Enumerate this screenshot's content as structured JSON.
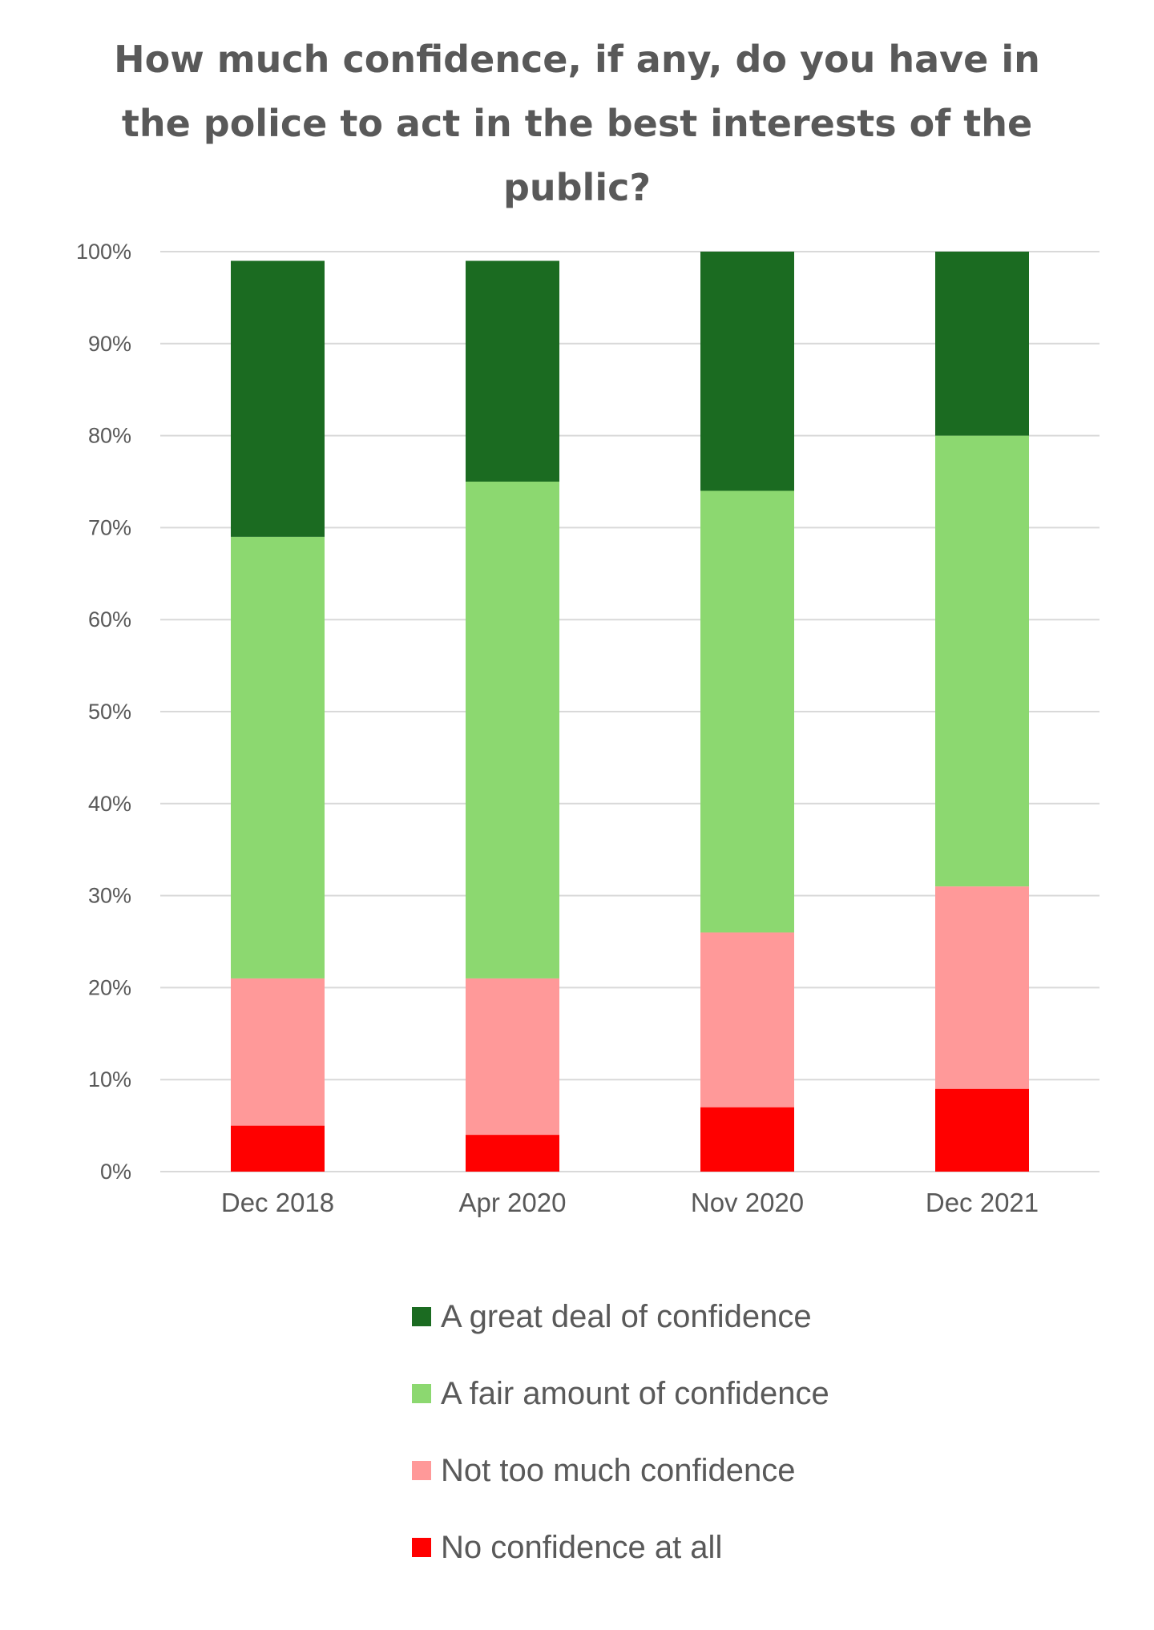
{
  "chart_data": {
    "type": "bar",
    "stacked": true,
    "title": "How much confidence, if any, do you have in the police to act in the best interests of the public?",
    "categories": [
      "Dec 2018",
      "Apr 2020",
      "Nov 2020",
      "Dec 2021"
    ],
    "series": [
      {
        "name": "No confidence at all",
        "color": "#ff0000",
        "values": [
          5,
          4,
          7,
          9
        ]
      },
      {
        "name": "Not too much confidence",
        "color": "#ff9999",
        "values": [
          16,
          17,
          19,
          22
        ]
      },
      {
        "name": "A fair amount of confidence",
        "color": "#8cd870",
        "values": [
          48,
          54,
          48,
          49
        ]
      },
      {
        "name": "A great deal of confidence",
        "color": "#1b6b21",
        "values": [
          30,
          24,
          26,
          20
        ]
      }
    ],
    "legend_order": [
      "A great deal of confidence",
      "A fair amount of confidence",
      "Not too much confidence",
      "No confidence at all"
    ],
    "ylim": [
      0,
      100
    ],
    "yticks": [
      "0%",
      "10%",
      "20%",
      "30%",
      "40%",
      "50%",
      "60%",
      "70%",
      "80%",
      "90%",
      "100%"
    ],
    "grid": true,
    "legend_position": "bottom",
    "xlabel": "",
    "ylabel": ""
  }
}
